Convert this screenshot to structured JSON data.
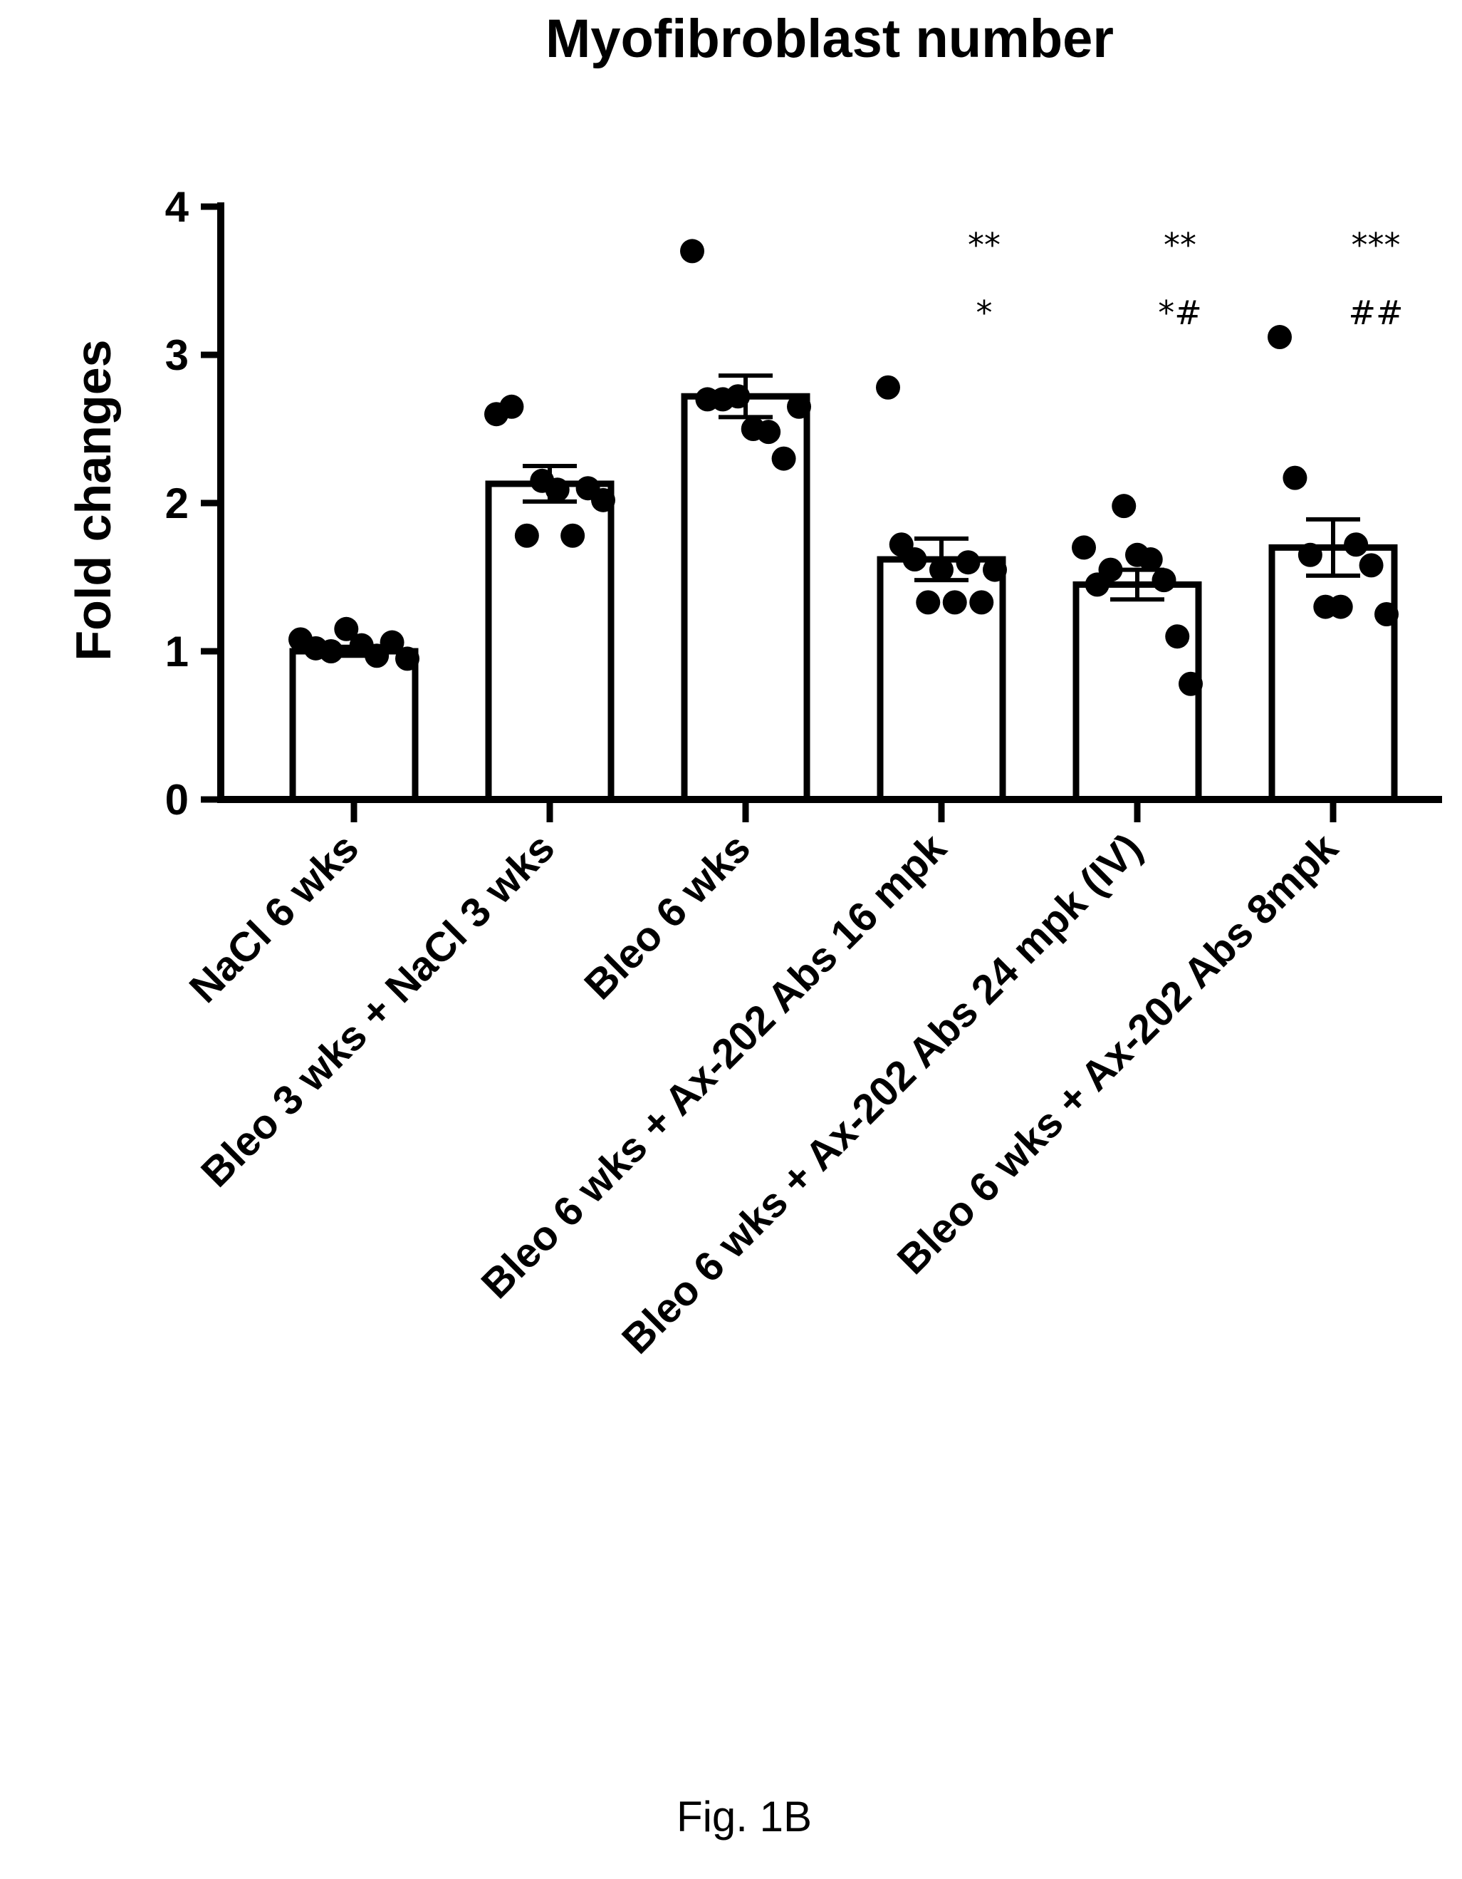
{
  "chart_data": {
    "type": "bar",
    "title": "Myofibroblast number",
    "ylabel": "Fold changes",
    "xlabel": "",
    "ylim": [
      0,
      4
    ],
    "yticks": [
      "0",
      "1",
      "2",
      "3",
      "4"
    ],
    "categories": [
      "NaCl 6 wks",
      "Bleo 3 wks + NaCl 3 wks",
      "Bleo 6 wks",
      "Bleo 6 wks + Ax-202 Abs 16 mpk",
      "Bleo 6 wks + Ax-202 Abs 24 mpk (IV)",
      "Bleo 6 wks + Ax-202 Abs 8mpk"
    ],
    "values": [
      1.0,
      2.13,
      2.72,
      1.62,
      1.45,
      1.7
    ],
    "errors": [
      0.03,
      0.12,
      0.14,
      0.14,
      0.1,
      0.19
    ],
    "points": [
      [
        1.08,
        1.02,
        1.0,
        1.15,
        1.04,
        0.97,
        1.06,
        0.95
      ],
      [
        2.6,
        2.65,
        1.78,
        2.15,
        2.09,
        1.78,
        2.1,
        2.02
      ],
      [
        3.7,
        2.7,
        2.7,
        2.72,
        2.5,
        2.48,
        2.3,
        2.65
      ],
      [
        2.78,
        1.72,
        1.62,
        1.33,
        1.55,
        1.33,
        1.6,
        1.33,
        1.55
      ],
      [
        1.7,
        1.45,
        1.55,
        1.98,
        1.65,
        1.62,
        1.48,
        1.1,
        0.78
      ],
      [
        3.12,
        2.17,
        1.65,
        1.3,
        1.3,
        1.72,
        1.58,
        1.25
      ]
    ],
    "significance": [
      [],
      [],
      [],
      [
        "**",
        "*"
      ],
      [
        "**",
        "*#"
      ],
      [
        "***",
        "##"
      ]
    ],
    "grid": false,
    "legend": "none"
  },
  "caption": "Fig. 1B"
}
